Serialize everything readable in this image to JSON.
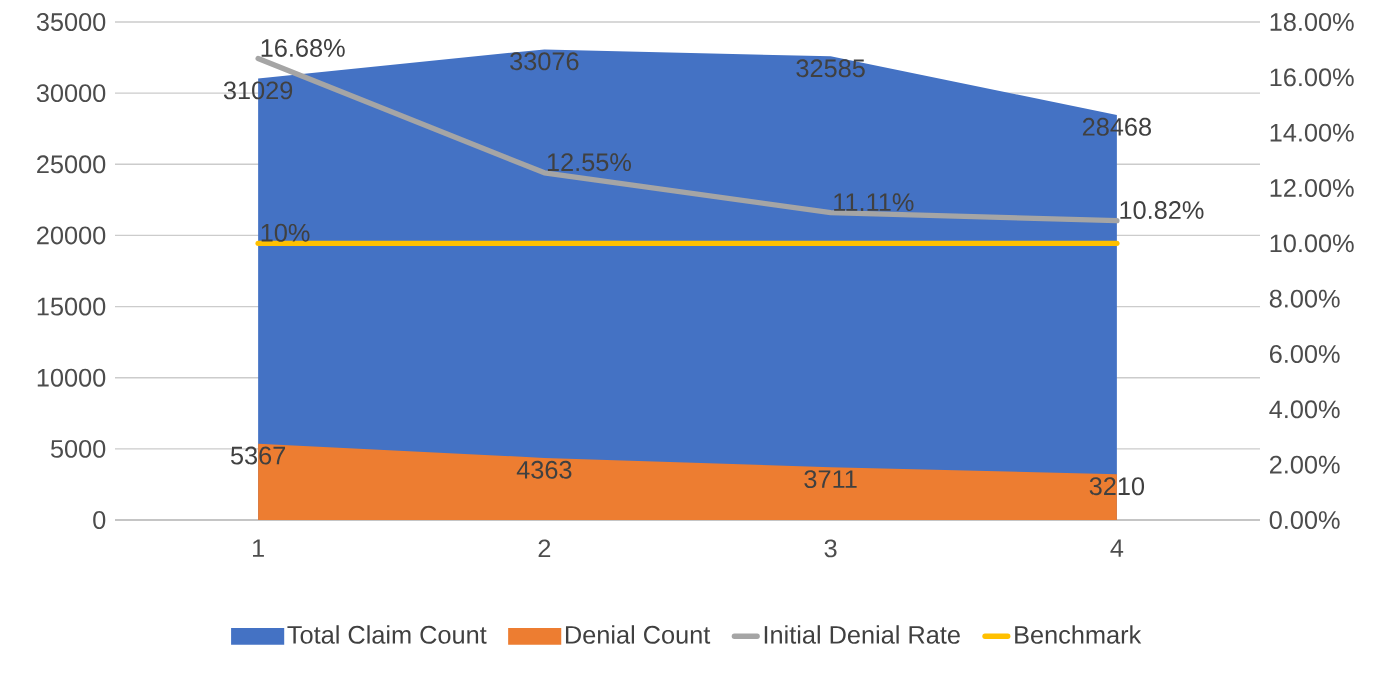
{
  "chart_data": {
    "type": "area",
    "categories": [
      "1",
      "2",
      "3",
      "4"
    ],
    "series": [
      {
        "name": "Total Claim Count",
        "color": "#4472c4",
        "values": [
          31029,
          33076,
          32585,
          28468
        ]
      },
      {
        "name": "Denial Count",
        "color": "#ed7d31",
        "values": [
          5367,
          4363,
          3711,
          3210
        ]
      },
      {
        "name": "Initial Denial Rate",
        "type": "line",
        "axis": "y2",
        "color": "#a5a5a5",
        "values": [
          16.68,
          12.55,
          11.11,
          10.82
        ],
        "value_labels": [
          "16.68%",
          "12.55%",
          "11.11%",
          "10.82%"
        ]
      },
      {
        "name": "Benchmark",
        "type": "line",
        "axis": "y2",
        "color": "#ffc000",
        "values": [
          10,
          10,
          10,
          10
        ],
        "value_labels": [
          "10%",
          null,
          null,
          null
        ]
      }
    ],
    "ylim": [
      0,
      35000
    ],
    "yticks": [
      0,
      5000,
      10000,
      15000,
      20000,
      25000,
      30000,
      35000
    ],
    "y2lim": [
      0,
      18
    ],
    "y2ticks": [
      {
        "value": 0,
        "label": "0.00%"
      },
      {
        "value": 2,
        "label": "2.00%"
      },
      {
        "value": 4,
        "label": "4.00%"
      },
      {
        "value": 6,
        "label": "6.00%"
      },
      {
        "value": 8,
        "label": "8.00%"
      },
      {
        "value": 10,
        "label": "10.00%"
      },
      {
        "value": 12,
        "label": "12.00%"
      },
      {
        "value": 14,
        "label": "14.00%"
      },
      {
        "value": 16,
        "label": "16.00%"
      },
      {
        "value": 18,
        "label": "18.00%"
      }
    ],
    "data_labels": true,
    "grid": "y",
    "legend": "bottom"
  }
}
